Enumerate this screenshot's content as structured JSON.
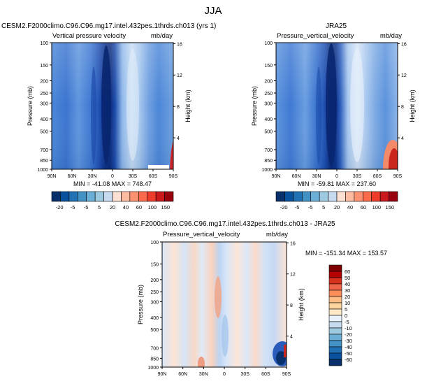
{
  "season": "JJA",
  "panels": [
    {
      "case": "CESM2.F2000climo.C96.C96.mg17.intel.432pes.1thrds.ch013 (yrs 1)",
      "variable": "Vertical pressure velocity",
      "units": "mb/day",
      "stats": "MIN = -41.08  MAX = 748.47"
    },
    {
      "case": "JRA25",
      "variable": "Pressure_vertical_velocity",
      "units": "mb/day",
      "stats": "MIN = -59.81  MAX = 237.60"
    },
    {
      "case": "CESM2.F2000climo.C96.C96.mg17.intel.432pes.1thrds.ch013 - JRA25",
      "variable": "Pressure_vertical_velocity",
      "units": "mb/day",
      "stats": "MIN = -151.34  MAX = 153.57"
    }
  ],
  "axes": {
    "ylabel": "Pressure (mb)",
    "ylabel_right": "Height (km)",
    "pressure_ticks": [
      "100",
      "150",
      "200",
      "250",
      "300",
      "400",
      "500",
      "700",
      "850",
      "1000"
    ],
    "height_ticks": [
      "16",
      "12",
      "8",
      "4"
    ],
    "lat_ticks": [
      "90N",
      "60N",
      "30N",
      "0",
      "30S",
      "60S",
      "90S"
    ]
  },
  "colorbar_abs": {
    "labels": [
      "-20",
      "-5",
      "-5",
      "5",
      "20",
      "40",
      "60",
      "100",
      "150"
    ],
    "colors": [
      "#08306b",
      "#08519c",
      "#2171b5",
      "#4292c6",
      "#6baed6",
      "#9ecae1",
      "#c6dbef",
      "#fee0d2",
      "#fcbba1",
      "#fc9272",
      "#fb6a4a",
      "#ef3b2c",
      "#cb181d",
      "#99000d"
    ]
  },
  "colorbar_diff": {
    "labels": [
      "60",
      "50",
      "40",
      "30",
      "20",
      "10",
      "5",
      "0",
      "-5",
      "-10",
      "-20",
      "-30",
      "-40",
      "-50",
      "-60"
    ],
    "colors": [
      "#7f0000",
      "#b30000",
      "#d7301f",
      "#ef6548",
      "#fc8d59",
      "#fdbb84",
      "#fdd49e",
      "#fee8c8",
      "#e8f0fb",
      "#c6dbef",
      "#9ecae1",
      "#6baed6",
      "#4292c6",
      "#2171b5",
      "#08519c",
      "#08306b"
    ]
  },
  "chart_data": [
    {
      "type": "heatmap",
      "title": "Vertical pressure velocity",
      "xlabel": "",
      "ylabel": "Pressure (mb)",
      "x": [
        "90N",
        "60N",
        "30N",
        "0",
        "30S",
        "60S",
        "90S"
      ],
      "y": [
        100,
        150,
        200,
        250,
        300,
        400,
        500,
        700,
        850,
        1000
      ],
      "value_range": [
        -41.08,
        748.47
      ]
    },
    {
      "type": "heatmap",
      "title": "Pressure_vertical_velocity",
      "xlabel": "",
      "ylabel": "Pressure (mb)",
      "x": [
        "90N",
        "60N",
        "30N",
        "0",
        "30S",
        "60S",
        "90S"
      ],
      "y": [
        100,
        150,
        200,
        250,
        300,
        400,
        500,
        700,
        850,
        1000
      ],
      "value_range": [
        -59.81,
        237.6
      ]
    },
    {
      "type": "heatmap",
      "title": "Pressure_vertical_velocity",
      "xlabel": "",
      "ylabel": "Pressure (mb)",
      "x": [
        "90N",
        "60N",
        "30N",
        "0",
        "30S",
        "60S",
        "90S"
      ],
      "y": [
        100,
        150,
        200,
        250,
        300,
        400,
        500,
        700,
        850,
        1000
      ],
      "value_range": [
        -151.34,
        153.57
      ]
    }
  ]
}
